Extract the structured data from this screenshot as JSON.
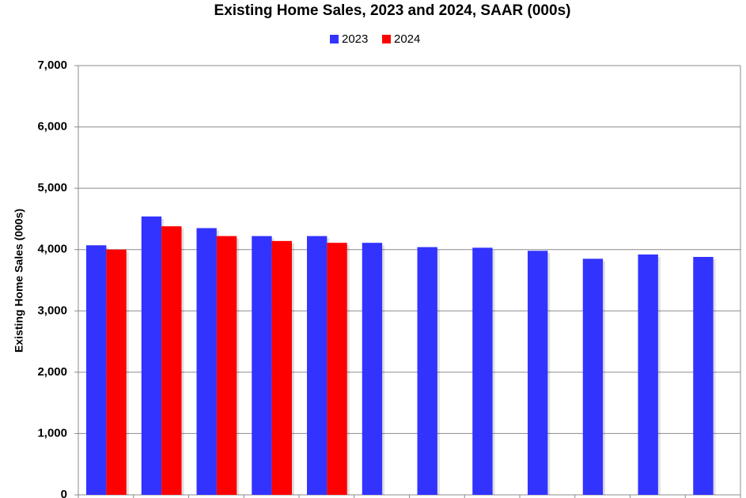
{
  "chart_data": {
    "type": "bar",
    "title": "Existing Home Sales,  2023 and 2024, SAAR (000s)",
    "y_label": "Existing Home Sales (000s)",
    "categories": [
      null,
      null,
      null,
      null,
      null,
      null,
      null,
      null,
      null,
      null,
      null,
      null
    ],
    "series": [
      {
        "name": "2023",
        "color": "#3333ff",
        "values": [
          4070,
          4540,
          4350,
          4220,
          4220,
          4110,
          4040,
          4030,
          3980,
          3850,
          3920,
          3880
        ]
      },
      {
        "name": "2024",
        "color": "#ff0000",
        "values": [
          4000,
          4380,
          4220,
          4140,
          4110,
          null,
          null,
          null,
          null,
          null,
          null,
          null
        ]
      }
    ],
    "ylim": [
      0,
      7000
    ],
    "yticks": [
      {
        "value": 0,
        "label": "0"
      },
      {
        "value": 1000,
        "label": "1,000"
      },
      {
        "value": 2000,
        "label": "2,000"
      },
      {
        "value": 3000,
        "label": "3,000"
      },
      {
        "value": 4000,
        "label": "4,000"
      },
      {
        "value": 5000,
        "label": "5,000"
      },
      {
        "value": 6000,
        "label": "6,000"
      },
      {
        "value": 7000,
        "label": "7,000"
      }
    ],
    "grid": true,
    "legend": "top"
  }
}
